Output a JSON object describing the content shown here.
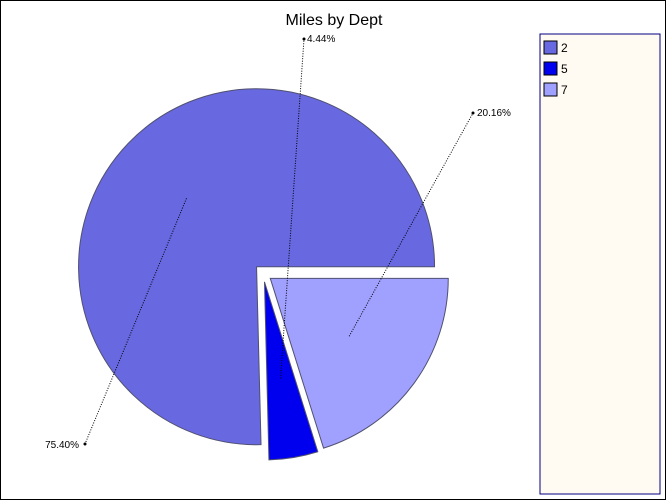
{
  "chart_data": {
    "type": "pie",
    "title": "Miles by Dept",
    "categories": [
      "2",
      "5",
      "7"
    ],
    "values": [
      75.4,
      4.44,
      20.16
    ],
    "value_labels": [
      "75.40%",
      "4.44%",
      "20.16%"
    ],
    "colors": [
      "#6868e0",
      "#0000ee",
      "#a0a0ff"
    ],
    "exploded": true,
    "start_angle_deg": 0,
    "direction": "counterclockwise",
    "legend_position": "right",
    "legend_background": "#fffaf2",
    "legend_border": "#000080"
  }
}
